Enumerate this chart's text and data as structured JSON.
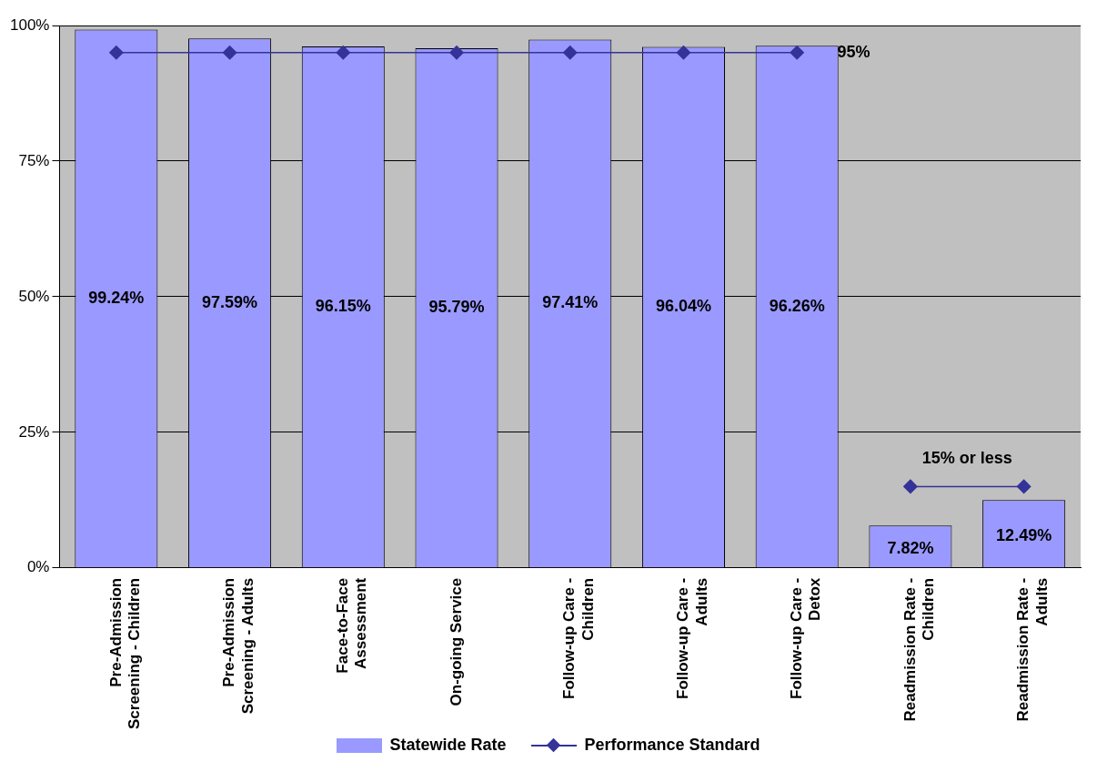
{
  "chart_data": {
    "type": "bar",
    "categories": [
      "Pre-Admission\nScreening - Children",
      "Pre-Admission\nScreening - Adults",
      "Face-to-Face\nAssessment",
      "On-going Service",
      "Follow-up Care -\nChildren",
      "Follow-up Care -\nAdults",
      "Follow-up Care -\nDetox",
      "Readmission Rate -\nChildren",
      "Readmission Rate -\nAdults"
    ],
    "series": [
      {
        "name": "Statewide Rate",
        "color": "#9999ff",
        "values": [
          99.24,
          97.59,
          96.15,
          95.79,
          97.41,
          96.04,
          96.26,
          7.82,
          12.49
        ],
        "value_labels": [
          "99.24%",
          "97.59%",
          "96.15%",
          "95.79%",
          "97.41%",
          "96.04%",
          "96.26%",
          "7.82%",
          "12.49%"
        ]
      },
      {
        "name": "Performance Standard",
        "type": "line",
        "color": "#333399",
        "values": [
          95,
          95,
          95,
          95,
          95,
          95,
          95,
          null,
          null
        ],
        "marker": "diamond"
      },
      {
        "type": "line",
        "color": "#333399",
        "values": [
          null,
          null,
          null,
          null,
          null,
          null,
          null,
          15,
          15
        ],
        "marker": "diamond"
      }
    ],
    "ylim": [
      0,
      100
    ],
    "yticks": [
      {
        "value": 0,
        "label": "0%"
      },
      {
        "value": 25,
        "label": "25%"
      },
      {
        "value": 50,
        "label": "50%"
      },
      {
        "value": 75,
        "label": "75%"
      },
      {
        "value": 100,
        "label": "100%"
      }
    ],
    "grid": "y",
    "legend": "bottom",
    "annotations": [
      {
        "text": "95%",
        "x": "Follow-up Care -\nDetox",
        "y": 95
      },
      {
        "text": "15% or less",
        "x": "Readmission Rate -\nChildren",
        "y": 15
      }
    ]
  }
}
